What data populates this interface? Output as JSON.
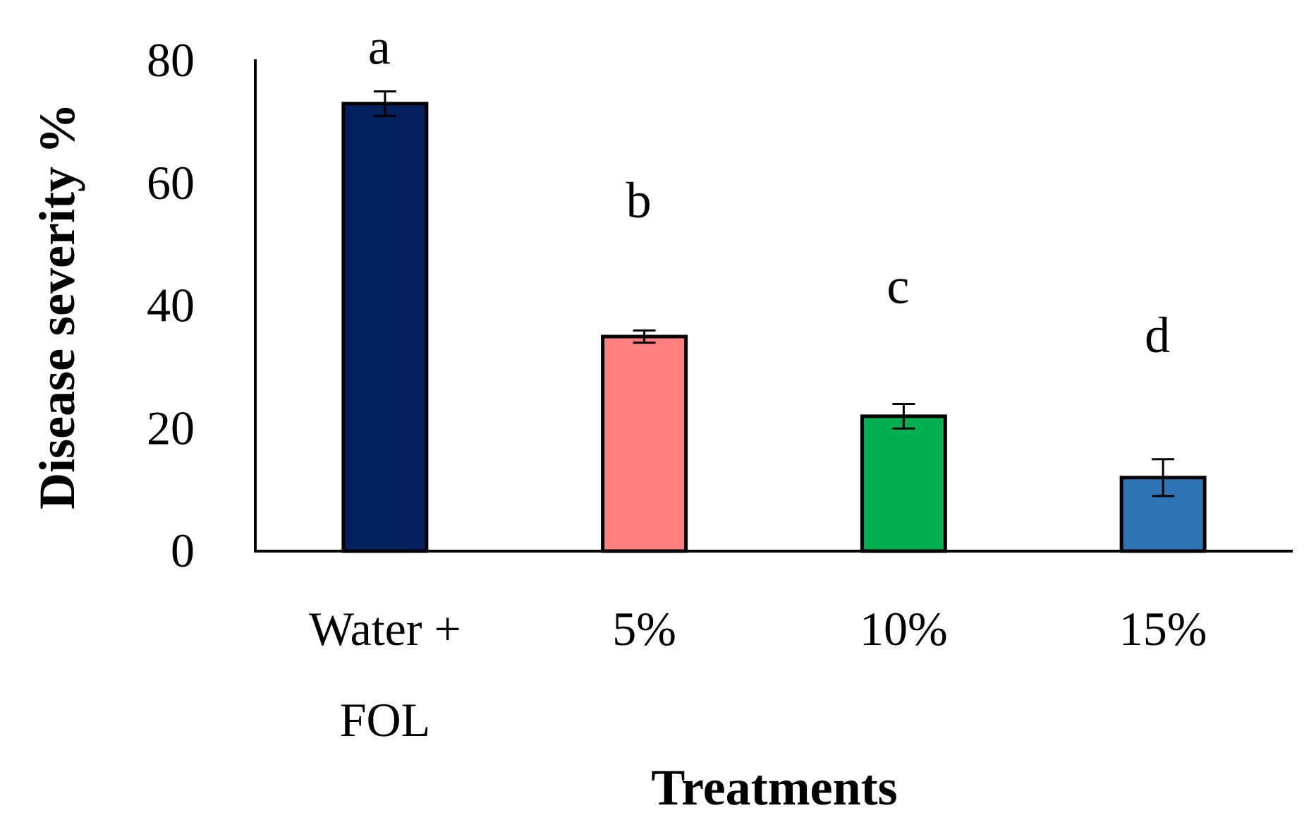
{
  "chart_data": {
    "type": "bar",
    "title": "",
    "xlabel": "Treatments",
    "ylabel": "Disease severity %",
    "ylim": [
      0,
      80
    ],
    "yticks": [
      0,
      20,
      40,
      60,
      80
    ],
    "grid": false,
    "legend": "none",
    "categories": [
      {
        "lines": [
          "Water +",
          "FOL"
        ]
      },
      {
        "lines": [
          "5%"
        ]
      },
      {
        "lines": [
          "10%"
        ]
      },
      {
        "lines": [
          "15%"
        ]
      }
    ],
    "values": [
      73,
      35,
      22,
      12
    ],
    "errors": [
      2,
      1,
      2,
      3
    ],
    "significance": [
      "a",
      "b",
      "c",
      "d"
    ],
    "significance_y": [
      82,
      57,
      43,
      35
    ],
    "colors": [
      "#03205C",
      "#FF7F7F",
      "#00B050",
      "#2E74B5"
    ]
  }
}
